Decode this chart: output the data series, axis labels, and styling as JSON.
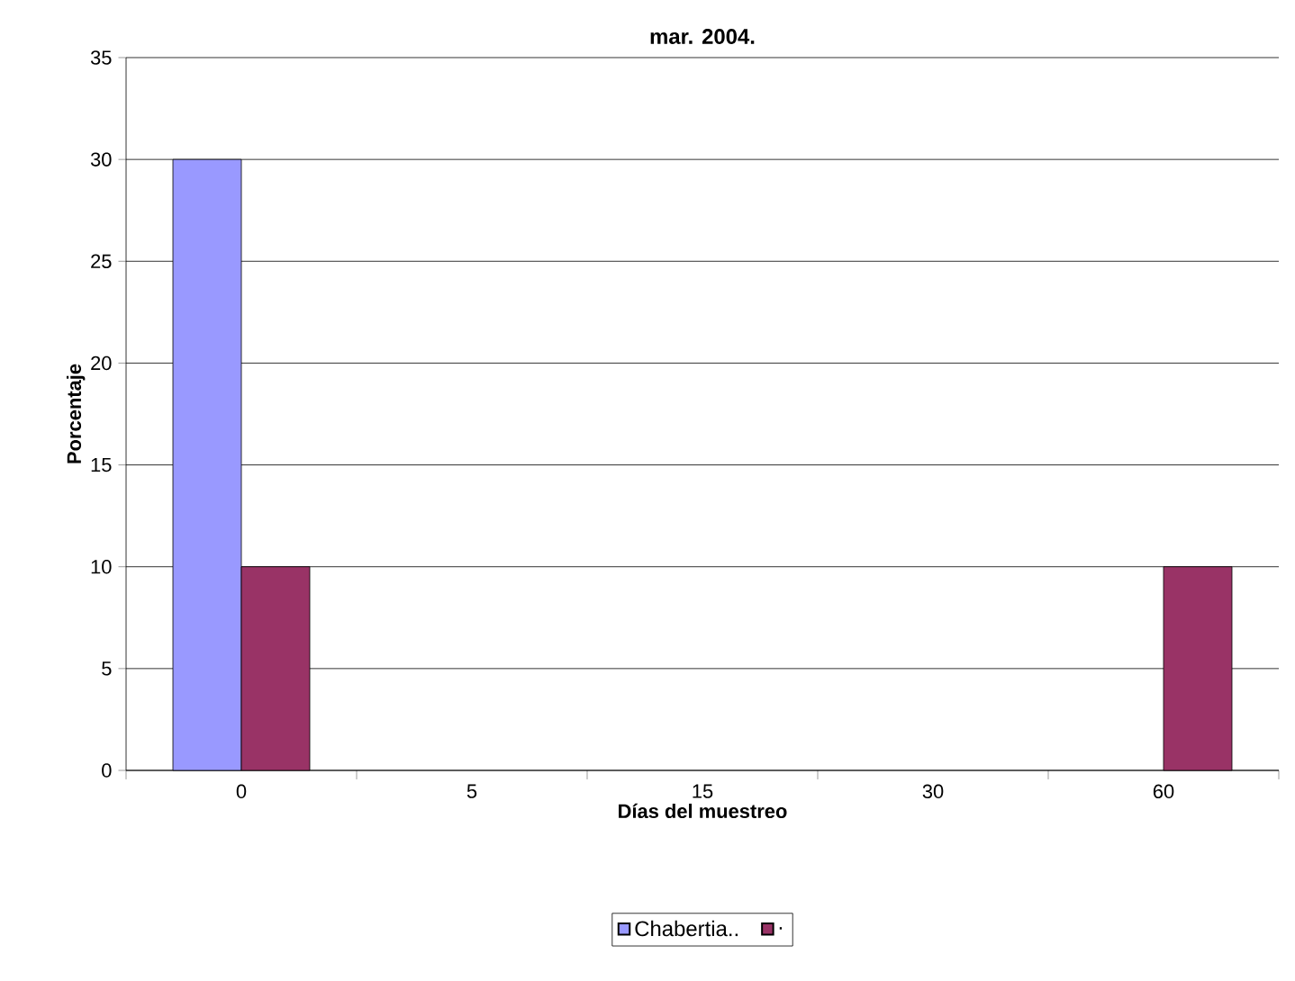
{
  "chart_data": {
    "type": "bar",
    "title": "mar. 2004.",
    "xlabel": "Días del muestreo",
    "ylabel": "Porcentaje",
    "categories": [
      "0",
      "5",
      "15",
      "30",
      "60"
    ],
    "series": [
      {
        "name": "Chabertia..",
        "color": "#9999ff",
        "values": [
          30,
          null,
          null,
          null,
          null
        ]
      },
      {
        "name": ".",
        "color": "#993366",
        "values": [
          10,
          null,
          null,
          null,
          10
        ]
      }
    ],
    "ylim": [
      0,
      35
    ],
    "yticks": [
      0,
      5,
      10,
      15,
      20,
      25,
      30,
      35
    ],
    "grid": "y",
    "legend": "bottom"
  }
}
